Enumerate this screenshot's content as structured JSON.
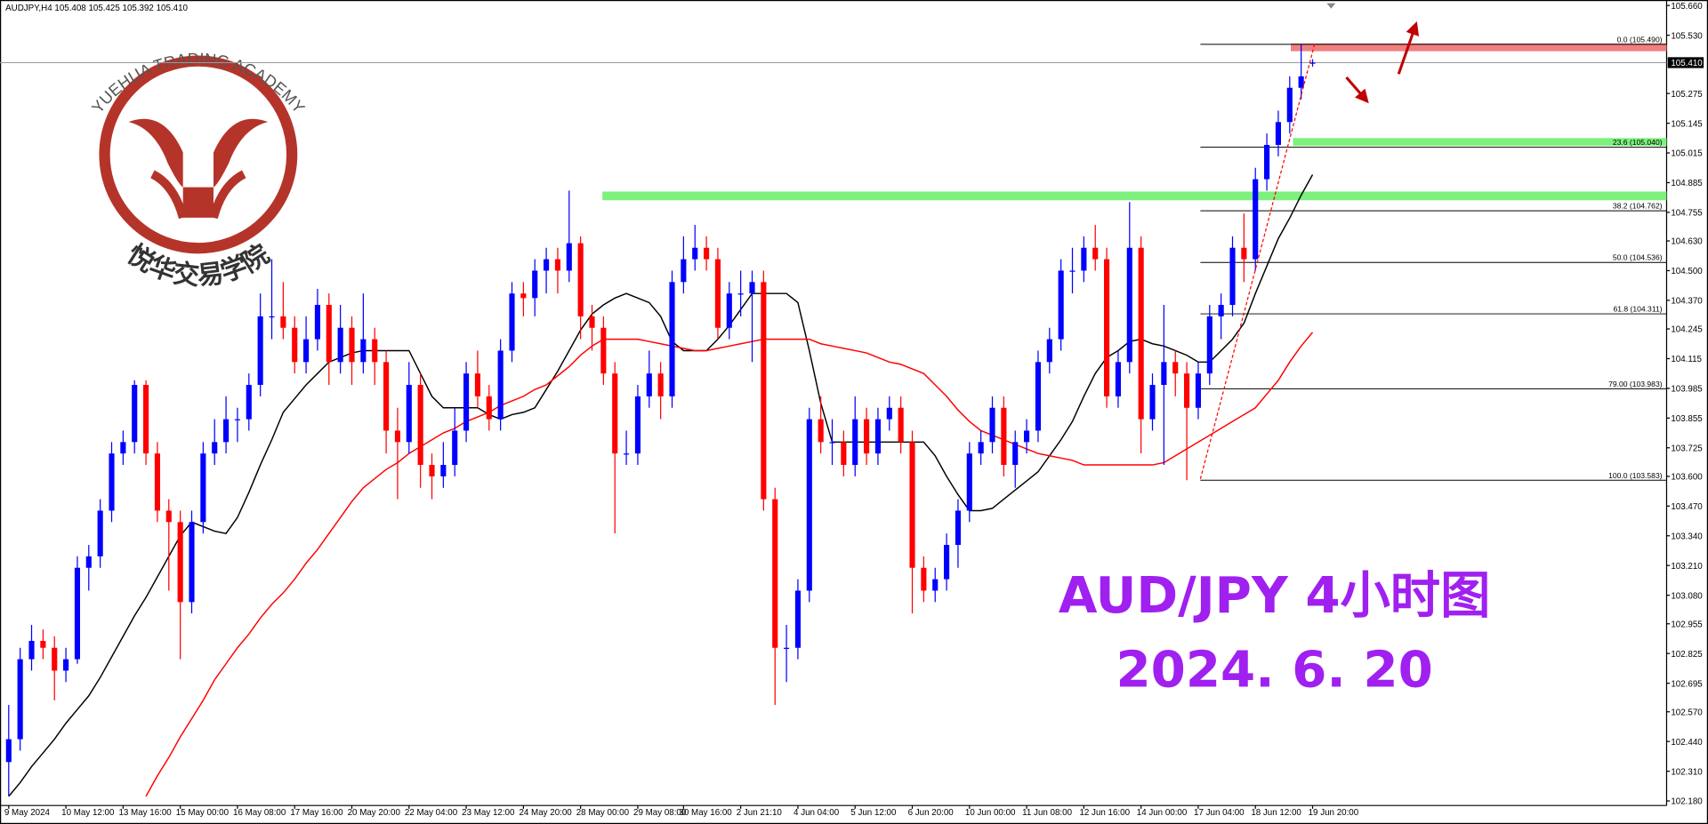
{
  "header": "AUDJPY,H4 105.408 105.425 105.392 105.410",
  "watermark": {
    "arc_text": "YUEHUA TRADING ACADEMY",
    "name": "悦华交易学院"
  },
  "chart_data": {
    "type": "candlestick",
    "categories": [
      "9 May 2024",
      null,
      null,
      null,
      null,
      "10 May 12:00",
      null,
      null,
      null,
      null,
      "13 May 16:00",
      null,
      null,
      null,
      null,
      "15 May 00:00",
      null,
      null,
      null,
      null,
      "16 May 08:00",
      null,
      null,
      null,
      null,
      "17 May 16:00",
      null,
      null,
      null,
      null,
      "20 May 20:00",
      null,
      null,
      null,
      null,
      "22 May 04:00",
      null,
      null,
      null,
      null,
      "23 May 12:00",
      null,
      null,
      null,
      null,
      "24 May 20:00",
      null,
      null,
      null,
      null,
      "28 May 00:00",
      null,
      null,
      null,
      null,
      "29 May 08:00",
      null,
      null,
      null,
      "30 May 16:00",
      null,
      null,
      null,
      null,
      "2 Jun 21:10",
      null,
      null,
      null,
      null,
      "4 Jun 04:00",
      null,
      null,
      null,
      null,
      "5 Jun 12:00",
      null,
      null,
      null,
      null,
      "6 Jun 20:00",
      null,
      null,
      null,
      null,
      "10 Jun 00:00",
      null,
      null,
      null,
      null,
      "11 Jun 08:00",
      null,
      null,
      null,
      null,
      "12 Jun 16:00",
      null,
      null,
      null,
      null,
      "14 Jun 00:00",
      null,
      null,
      null,
      null,
      "17 Jun 04:00",
      null,
      null,
      null,
      null,
      "18 Jun 12:00",
      null,
      null,
      null,
      null,
      "19 Jun 20:00"
    ],
    "ohlc": [
      [
        102.35,
        102.6,
        102.2,
        102.45
      ],
      [
        102.45,
        102.85,
        102.4,
        102.8
      ],
      [
        102.8,
        102.95,
        102.75,
        102.88
      ],
      [
        102.88,
        102.93,
        102.8,
        102.85
      ],
      [
        102.85,
        102.9,
        102.62,
        102.75
      ],
      [
        102.75,
        102.85,
        102.7,
        102.8
      ],
      [
        102.8,
        103.25,
        102.78,
        103.2
      ],
      [
        103.2,
        103.3,
        103.1,
        103.25
      ],
      [
        103.25,
        103.5,
        103.2,
        103.45
      ],
      [
        103.45,
        103.75,
        103.4,
        103.7
      ],
      [
        103.7,
        103.8,
        103.65,
        103.75
      ],
      [
        103.75,
        104.02,
        103.7,
        104.0
      ],
      [
        104.0,
        104.02,
        103.65,
        103.7
      ],
      [
        103.7,
        103.75,
        103.4,
        103.45
      ],
      [
        103.45,
        103.5,
        103.1,
        103.4
      ],
      [
        103.4,
        103.45,
        102.8,
        103.05
      ],
      [
        103.05,
        103.45,
        103.0,
        103.4
      ],
      [
        103.4,
        103.75,
        103.35,
        103.7
      ],
      [
        103.7,
        103.85,
        103.65,
        103.75
      ],
      [
        103.75,
        103.95,
        103.7,
        103.85
      ],
      [
        103.85,
        103.9,
        103.75,
        103.85
      ],
      [
        103.85,
        104.05,
        103.8,
        104.0
      ],
      [
        104.0,
        104.4,
        103.95,
        104.3
      ],
      [
        104.3,
        104.55,
        104.2,
        104.3
      ],
      [
        104.3,
        104.45,
        104.2,
        104.25
      ],
      [
        104.25,
        104.3,
        104.05,
        104.1
      ],
      [
        104.1,
        104.3,
        104.05,
        104.2
      ],
      [
        104.2,
        104.42,
        104.15,
        104.35
      ],
      [
        104.35,
        104.4,
        104.0,
        104.1
      ],
      [
        104.1,
        104.35,
        104.05,
        104.25
      ],
      [
        104.25,
        104.3,
        104.0,
        104.1
      ],
      [
        104.1,
        104.4,
        104.05,
        104.2
      ],
      [
        104.2,
        104.25,
        104.0,
        104.1
      ],
      [
        104.1,
        104.15,
        103.7,
        103.8
      ],
      [
        103.8,
        103.9,
        103.5,
        103.75
      ],
      [
        103.75,
        104.1,
        103.7,
        104.0
      ],
      [
        104.0,
        104.05,
        103.55,
        103.65
      ],
      [
        103.65,
        103.7,
        103.5,
        103.6
      ],
      [
        103.6,
        103.75,
        103.55,
        103.65
      ],
      [
        103.65,
        103.9,
        103.6,
        103.8
      ],
      [
        103.8,
        104.1,
        103.75,
        104.05
      ],
      [
        104.05,
        104.15,
        103.9,
        103.95
      ],
      [
        103.95,
        104.0,
        103.8,
        103.85
      ],
      [
        103.85,
        104.2,
        103.8,
        104.15
      ],
      [
        104.15,
        104.45,
        104.1,
        104.4
      ],
      [
        104.4,
        104.45,
        104.3,
        104.38
      ],
      [
        104.38,
        104.55,
        104.3,
        104.5
      ],
      [
        104.5,
        104.6,
        104.4,
        104.55
      ],
      [
        104.55,
        104.6,
        104.4,
        104.5
      ],
      [
        104.5,
        104.85,
        104.45,
        104.62
      ],
      [
        104.62,
        104.65,
        104.2,
        104.3
      ],
      [
        104.3,
        104.35,
        104.15,
        104.25
      ],
      [
        104.25,
        104.3,
        104.0,
        104.05
      ],
      [
        104.05,
        104.1,
        103.35,
        103.7
      ],
      [
        103.7,
        103.8,
        103.65,
        103.7
      ],
      [
        103.7,
        104.0,
        103.65,
        103.95
      ],
      [
        103.95,
        104.15,
        103.9,
        104.05
      ],
      [
        104.05,
        104.1,
        103.85,
        103.95
      ],
      [
        103.95,
        104.5,
        103.9,
        104.45
      ],
      [
        104.45,
        104.65,
        104.4,
        104.55
      ],
      [
        104.55,
        104.7,
        104.5,
        104.6
      ],
      [
        104.6,
        104.65,
        104.5,
        104.55
      ],
      [
        104.55,
        104.6,
        104.2,
        104.25
      ],
      [
        104.25,
        104.45,
        104.2,
        104.4
      ],
      [
        104.4,
        104.5,
        104.3,
        104.4
      ],
      [
        104.4,
        104.5,
        104.1,
        104.45
      ],
      [
        104.45,
        104.5,
        103.45,
        103.5
      ],
      [
        103.5,
        103.55,
        102.6,
        102.85
      ],
      [
        102.85,
        102.95,
        102.7,
        102.85
      ],
      [
        102.85,
        103.15,
        102.8,
        103.1
      ],
      [
        103.1,
        103.9,
        103.05,
        103.85
      ],
      [
        103.85,
        103.95,
        103.7,
        103.75
      ],
      [
        103.75,
        103.85,
        103.65,
        103.75
      ],
      [
        103.75,
        103.8,
        103.6,
        103.65
      ],
      [
        103.65,
        103.95,
        103.6,
        103.85
      ],
      [
        103.85,
        103.9,
        103.65,
        103.7
      ],
      [
        103.7,
        103.9,
        103.65,
        103.85
      ],
      [
        103.85,
        103.95,
        103.8,
        103.9
      ],
      [
        103.9,
        103.95,
        103.7,
        103.75
      ],
      [
        103.75,
        103.8,
        103.0,
        103.2
      ],
      [
        103.2,
        103.25,
        103.05,
        103.1
      ],
      [
        103.1,
        103.2,
        103.05,
        103.15
      ],
      [
        103.15,
        103.35,
        103.1,
        103.3
      ],
      [
        103.3,
        103.5,
        103.2,
        103.45
      ],
      [
        103.45,
        103.75,
        103.4,
        103.7
      ],
      [
        103.7,
        103.8,
        103.65,
        103.75
      ],
      [
        103.75,
        103.95,
        103.7,
        103.9
      ],
      [
        103.9,
        103.95,
        103.6,
        103.65
      ],
      [
        103.65,
        103.8,
        103.55,
        103.75
      ],
      [
        103.75,
        103.85,
        103.7,
        103.8
      ],
      [
        103.8,
        104.15,
        103.75,
        104.1
      ],
      [
        104.1,
        104.25,
        104.05,
        104.2
      ],
      [
        104.2,
        104.55,
        104.15,
        104.5
      ],
      [
        104.5,
        104.6,
        104.4,
        104.5
      ],
      [
        104.5,
        104.65,
        104.45,
        104.6
      ],
      [
        104.6,
        104.7,
        104.5,
        104.55
      ],
      [
        104.55,
        104.6,
        103.9,
        103.95
      ],
      [
        103.95,
        104.15,
        103.9,
        104.1
      ],
      [
        104.1,
        104.8,
        104.05,
        104.6
      ],
      [
        104.6,
        104.65,
        103.7,
        103.85
      ],
      [
        103.85,
        104.05,
        103.8,
        104.0
      ],
      [
        104.0,
        104.35,
        103.65,
        104.1
      ],
      [
        104.1,
        104.15,
        103.95,
        104.05
      ],
      [
        104.05,
        104.1,
        103.583,
        103.9
      ],
      [
        103.9,
        104.1,
        103.85,
        104.05
      ],
      [
        104.05,
        104.35,
        104.0,
        104.3
      ],
      [
        104.3,
        104.4,
        104.2,
        104.35
      ],
      [
        104.35,
        104.65,
        104.3,
        104.6
      ],
      [
        104.6,
        104.75,
        104.45,
        104.55
      ],
      [
        104.55,
        104.95,
        104.5,
        104.9
      ],
      [
        104.9,
        105.1,
        104.85,
        105.05
      ],
      [
        105.05,
        105.2,
        105.0,
        105.15
      ],
      [
        105.15,
        105.35,
        105.1,
        105.3
      ],
      [
        105.3,
        105.49,
        105.25,
        105.35
      ],
      [
        105.408,
        105.425,
        105.392,
        105.41
      ]
    ],
    "up_color": "#0000ff",
    "down_color": "#ff0000",
    "series": [
      {
        "color": "#000000",
        "values": [
          102.2,
          102.26,
          102.33,
          102.39,
          102.45,
          102.52,
          102.58,
          102.64,
          102.72,
          102.81,
          102.9,
          102.99,
          103.07,
          103.16,
          103.25,
          103.34,
          103.4,
          103.38,
          103.36,
          103.35,
          103.42,
          103.53,
          103.65,
          103.76,
          103.88,
          103.94,
          104.0,
          104.05,
          104.1,
          104.12,
          104.14,
          104.15,
          104.15,
          104.15,
          104.15,
          104.15,
          104.05,
          103.95,
          103.9,
          103.9,
          103.9,
          103.9,
          103.87,
          103.85,
          103.87,
          103.88,
          103.9,
          103.98,
          104.06,
          104.15,
          104.24,
          104.31,
          104.35,
          104.38,
          104.4,
          104.38,
          104.36,
          104.3,
          104.19,
          104.15,
          104.15,
          104.15,
          104.2,
          104.26,
          104.33,
          104.4,
          104.4,
          104.4,
          104.4,
          104.36,
          104.15,
          103.92,
          103.75,
          103.75,
          103.75,
          103.75,
          103.75,
          103.75,
          103.75,
          103.75,
          103.75,
          103.69,
          103.6,
          103.52,
          103.45,
          103.45,
          103.46,
          103.5,
          103.54,
          103.58,
          103.62,
          103.69,
          103.76,
          103.84,
          103.95,
          104.05,
          104.12,
          104.15,
          104.19,
          104.2,
          104.18,
          104.17,
          104.15,
          104.13,
          104.1,
          104.1,
          104.15,
          104.2,
          104.27,
          104.4,
          104.52,
          104.64,
          104.73,
          104.83,
          104.92
        ]
      },
      {
        "color": "#ff0000",
        "values": [
          null,
          null,
          null,
          null,
          null,
          null,
          null,
          null,
          null,
          null,
          null,
          null,
          102.2,
          102.29,
          102.37,
          102.46,
          102.54,
          102.62,
          102.71,
          102.78,
          102.85,
          102.91,
          102.98,
          103.04,
          103.09,
          103.15,
          103.22,
          103.28,
          103.35,
          103.42,
          103.49,
          103.55,
          103.59,
          103.63,
          103.66,
          103.7,
          103.73,
          103.76,
          103.79,
          103.81,
          103.84,
          103.86,
          103.88,
          103.91,
          103.93,
          103.95,
          103.98,
          104.0,
          104.04,
          104.08,
          104.13,
          104.17,
          104.2,
          104.2,
          104.2,
          104.2,
          104.19,
          104.18,
          104.17,
          104.16,
          104.15,
          104.15,
          104.16,
          104.17,
          104.18,
          104.19,
          104.2,
          104.2,
          104.2,
          104.2,
          104.2,
          104.18,
          104.17,
          104.16,
          104.15,
          104.14,
          104.12,
          104.1,
          104.09,
          104.07,
          104.05,
          104.0,
          103.95,
          103.89,
          103.84,
          103.8,
          103.78,
          103.76,
          103.74,
          103.72,
          103.7,
          103.69,
          103.68,
          103.67,
          103.65,
          103.65,
          103.65,
          103.65,
          103.65,
          103.65,
          103.65,
          103.66,
          103.69,
          103.72,
          103.75,
          103.78,
          103.81,
          103.84,
          103.87,
          103.9,
          103.96,
          104.02,
          104.1,
          104.17,
          104.23
        ]
      }
    ],
    "ylim": [
      102.16,
      105.684
    ],
    "yticks": [
      {
        "value": 105.66,
        "label": "105.660"
      },
      {
        "value": 105.53,
        "label": "105.530"
      },
      {
        "value": 105.275,
        "label": "105.275"
      },
      {
        "value": 105.145,
        "label": "105.145"
      },
      {
        "value": 105.015,
        "label": "105.015"
      },
      {
        "value": 104.885,
        "label": "104.885"
      },
      {
        "value": 104.755,
        "label": "104.755"
      },
      {
        "value": 104.63,
        "label": "104.630"
      },
      {
        "value": 104.5,
        "label": "104.500"
      },
      {
        "value": 104.37,
        "label": "104.370"
      },
      {
        "value": 104.245,
        "label": "104.245"
      },
      {
        "value": 104.115,
        "label": "104.115"
      },
      {
        "value": 103.985,
        "label": "103.985"
      },
      {
        "value": 103.855,
        "label": "103.855"
      },
      {
        "value": 103.725,
        "label": "103.725"
      },
      {
        "value": 103.6,
        "label": "103.600"
      },
      {
        "value": 103.47,
        "label": "103.470"
      },
      {
        "value": 103.34,
        "label": "103.340"
      },
      {
        "value": 103.21,
        "label": "103.210"
      },
      {
        "value": 103.08,
        "label": "103.080"
      },
      {
        "value": 102.955,
        "label": "102.955"
      },
      {
        "value": 102.825,
        "label": "102.825"
      },
      {
        "value": 102.695,
        "label": "102.695"
      },
      {
        "value": 102.57,
        "label": "102.570"
      },
      {
        "value": 102.44,
        "label": "102.440"
      },
      {
        "value": 102.31,
        "label": "102.310"
      },
      {
        "value": 102.18,
        "label": "102.180"
      }
    ],
    "current_price": {
      "value": 105.41,
      "label": "105.410"
    },
    "fib_levels": [
      {
        "value": 105.49,
        "label": "0.0 (105.490)"
      },
      {
        "value": 105.04,
        "label": "23.6 (105.040)"
      },
      {
        "value": 104.762,
        "label": "38.2 (104.762)"
      },
      {
        "value": 104.536,
        "label": "50.0 (104.536)"
      },
      {
        "value": 104.311,
        "label": "61.8 (104.311)"
      },
      {
        "value": 103.983,
        "label": "79.00 (103.983)"
      },
      {
        "value": 103.583,
        "label": "100.0 (103.583)"
      }
    ],
    "zones": [
      {
        "low": 105.46,
        "high": 105.494,
        "color": "#f08080"
      },
      {
        "low": 105.046,
        "high": 105.08,
        "color": "#7ef07e"
      },
      {
        "low": 104.808,
        "high": 104.846,
        "color": "#7ef07e"
      }
    ],
    "annotations": [
      "AUD/JPY 4小时图",
      "2024. 6. 20"
    ]
  }
}
